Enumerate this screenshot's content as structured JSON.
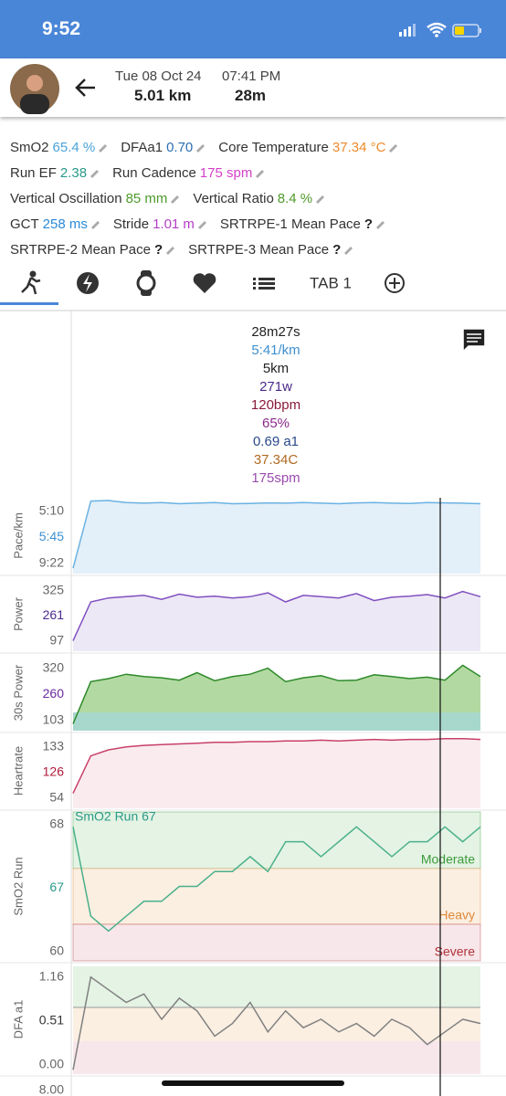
{
  "status_bar": {
    "time": "9:52"
  },
  "header": {
    "date": "Tue 08 Oct 24",
    "time": "07:41 PM",
    "distance": "5.01 km",
    "duration": "28m"
  },
  "metrics": [
    [
      {
        "label": "SmO2",
        "value": "65.4 %",
        "color": "#4aa3d8"
      },
      {
        "label": "DFAa1",
        "value": "0.70",
        "color": "#2d6fb3"
      },
      {
        "label": "Core Temperature",
        "value": "37.34 °C",
        "color": "#ec8a2c"
      }
    ],
    [
      {
        "label": "Run EF",
        "value": "2.38",
        "color": "#2a9a88"
      },
      {
        "label": "Run Cadence",
        "value": "175 spm",
        "color": "#d43fc8"
      }
    ],
    [
      {
        "label": "Vertical Oscillation",
        "value": "85 mm",
        "color": "#4f9a2a"
      },
      {
        "label": "Vertical Ratio",
        "value": "8.4 %",
        "color": "#4f9a2a"
      }
    ],
    [
      {
        "label": "GCT",
        "value": "258 ms",
        "color": "#2a8ad8"
      },
      {
        "label": "Stride",
        "value": "1.01 m",
        "color": "#b23fc4"
      },
      {
        "label": "SRTRPE-1 Mean Pace",
        "value": "?",
        "color": "#222222"
      }
    ],
    [
      {
        "label": "SRTRPE-2 Mean Pace",
        "value": "?",
        "color": "#222222"
      },
      {
        "label": "SRTRPE-3 Mean Pace",
        "value": "?",
        "color": "#222222"
      }
    ]
  ],
  "tabs": [
    "TAB 1"
  ],
  "summary": [
    {
      "text": "28m27s",
      "color": "#222222"
    },
    {
      "text": "5:41/km",
      "color": "#3d8fd0"
    },
    {
      "text": "5km",
      "color": "#222222"
    },
    {
      "text": "271w",
      "color": "#4b2a8a"
    },
    {
      "text": "120bpm",
      "color": "#8a1a3a"
    },
    {
      "text": "65%",
      "color": "#8a2a8a"
    },
    {
      "text": "0.69 a1",
      "color": "#2a4a8a"
    },
    {
      "text": "37.34C",
      "color": "#b06a20"
    },
    {
      "text": "175spm",
      "color": "#9a4ab0"
    }
  ],
  "panels": [
    {
      "label": "Pace/km",
      "ticks": [
        "5:10",
        "5:45",
        "9:22"
      ],
      "tick_color": "#3d8fd0",
      "line": "#6ab2e2",
      "fill": "#dcebf7",
      "ylim": [
        580,
        300
      ],
      "values": [
        560,
        312,
        310,
        318,
        320,
        318,
        322,
        320,
        318,
        322,
        321,
        319,
        320,
        318,
        320,
        322,
        319,
        318,
        320,
        321,
        318,
        319,
        320,
        322
      ]
    },
    {
      "label": "Power",
      "ticks": [
        "325",
        "261",
        "97"
      ],
      "tick_color": "#4b2a8a",
      "line": "#8050c0",
      "fill": "#e8e2f2",
      "ylim": [
        60,
        345
      ],
      "values": [
        100,
        250,
        265,
        270,
        275,
        260,
        280,
        268,
        272,
        265,
        270,
        285,
        250,
        275,
        270,
        265,
        282,
        255,
        268,
        272,
        278,
        265,
        290,
        270
      ]
    },
    {
      "label": "30s Power",
      "ticks": [
        "320",
        "260",
        "103"
      ],
      "tick_color": "#6a2aa0",
      "line": "#2e8a2a",
      "fill": "#9fd08a",
      "ylim": [
        80,
        335
      ],
      "values": [
        103,
        245,
        255,
        270,
        262,
        258,
        250,
        275,
        248,
        262,
        270,
        290,
        245,
        258,
        265,
        248,
        250,
        268,
        262,
        255,
        260,
        250,
        300,
        262
      ]
    },
    {
      "label": "Heartrate",
      "ticks": [
        "133",
        "126",
        "54"
      ],
      "tick_color": "#b01a3a",
      "line": "#c8406a",
      "fill": "#f8e6ea",
      "ylim": [
        40,
        140
      ],
      "values": [
        60,
        110,
        118,
        122,
        124,
        125,
        126,
        127,
        128,
        128,
        129,
        129,
        130,
        130,
        131,
        130,
        131,
        132,
        131,
        132,
        132,
        133,
        133,
        132
      ]
    },
    {
      "label": "SmO2 Run",
      "ticks": [
        "68",
        "67",
        "60"
      ],
      "tick_color": "#2a9a88",
      "line": "#4ab08a",
      "fill": "none",
      "ylim": [
        59,
        69
      ],
      "title": "SmO2 Run 67",
      "zones": [
        {
          "label": "Moderate",
          "color": "#3a9a3a",
          "bg": "#e4f3e4"
        },
        {
          "label": "Heavy",
          "color": "#e08a3a",
          "bg": "#fbefe2"
        },
        {
          "label": "Severe",
          "color": "#b0303a",
          "bg": "#f8e7ea"
        }
      ],
      "values": [
        68,
        62,
        61,
        62,
        63,
        63,
        64,
        64,
        65,
        65,
        66,
        65,
        67,
        67,
        66,
        67,
        68,
        67,
        66,
        67,
        67,
        68,
        67,
        68
      ]
    },
    {
      "label": "DFA a1",
      "ticks": [
        "1.16",
        "0.51",
        "0.00"
      ],
      "tick_color": "#333333",
      "line": "#808080",
      "fill": "none",
      "ylim": [
        -0.05,
        1.25
      ],
      "bands": [
        "#e4f3e4",
        "#fbefe2",
        "#f8e7ea"
      ],
      "values": [
        0.0,
        1.1,
        0.95,
        0.8,
        0.9,
        0.6,
        0.85,
        0.7,
        0.4,
        0.55,
        0.8,
        0.45,
        0.7,
        0.5,
        0.6,
        0.45,
        0.55,
        0.4,
        0.6,
        0.5,
        0.3,
        0.45,
        0.6,
        0.55
      ]
    }
  ],
  "next_panel": {
    "tick": "8.00"
  }
}
